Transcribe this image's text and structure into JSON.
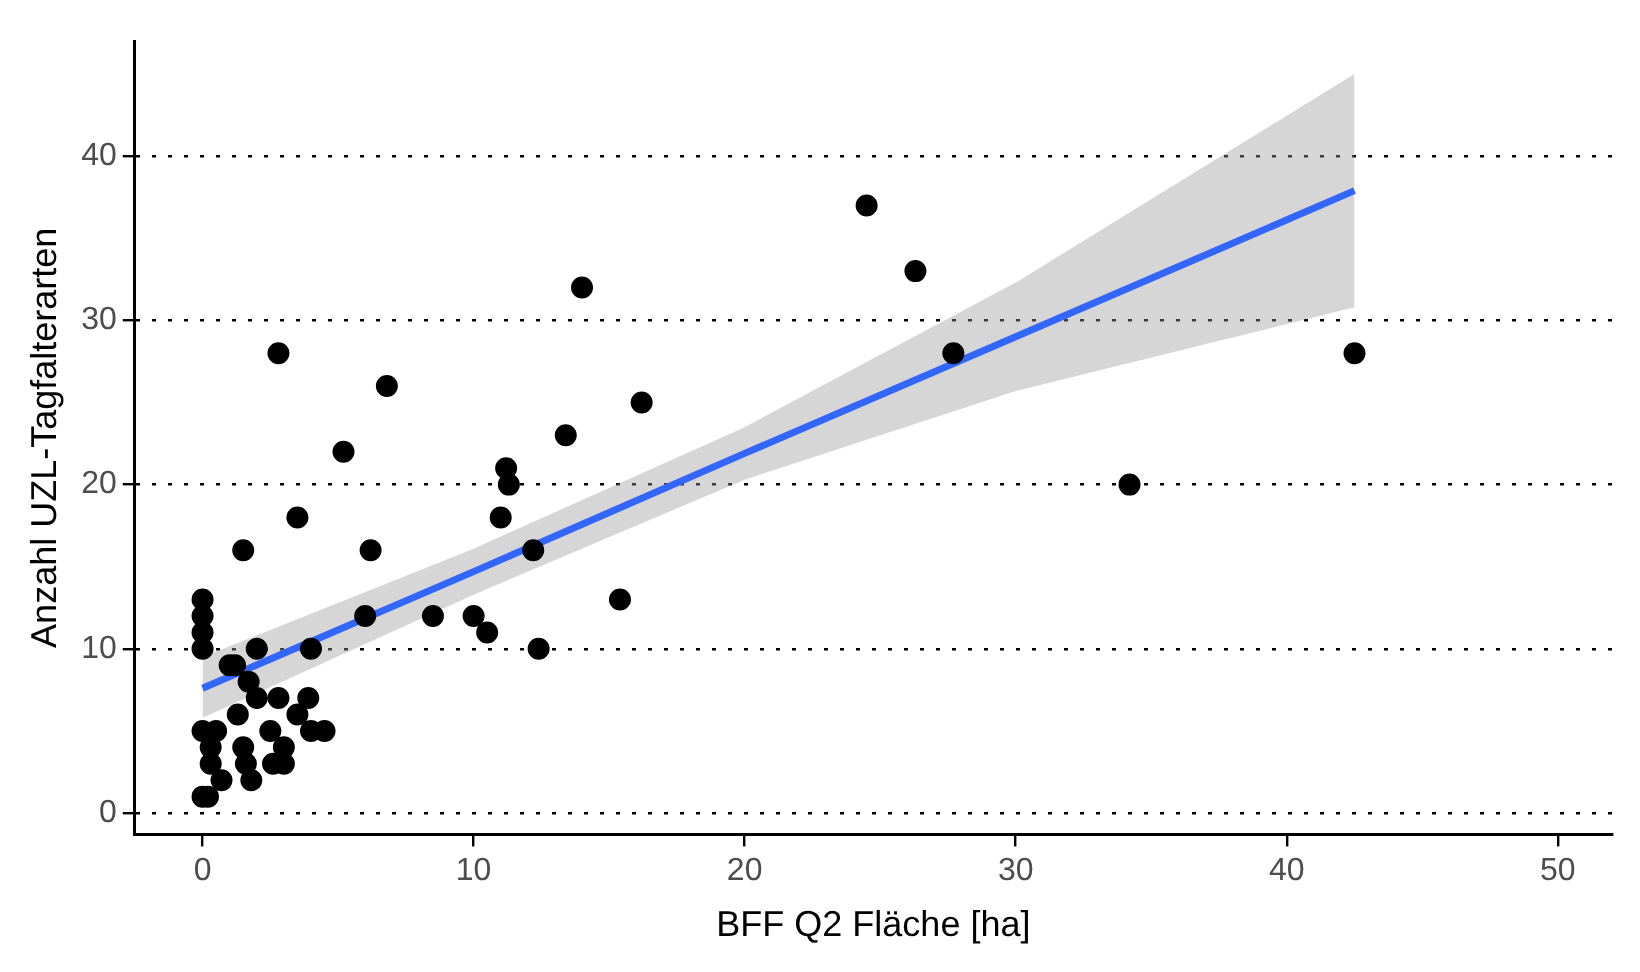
{
  "chart_data": {
    "type": "scatter",
    "xlabel": "BFF Q2 Fläche [ha]",
    "ylabel": "Anzahl UZL-Tagfalterarten",
    "xlim": [
      -2.5,
      52
    ],
    "ylim": [
      -1.3,
      47
    ],
    "xticks": [
      0,
      10,
      20,
      30,
      40,
      50
    ],
    "yticks": [
      0,
      10,
      20,
      30,
      40
    ],
    "grid": "y",
    "legend": false,
    "marker": "circle",
    "series": [
      {
        "type": "scatter",
        "color": "#000000",
        "x": [
          0,
          0,
          0,
          0,
          0,
          0,
          0.2,
          0.3,
          0.5,
          0.3,
          0.7,
          1,
          1.2,
          1.3,
          1.5,
          1.6,
          1.7,
          1.8,
          2,
          2,
          2.5,
          2.6,
          2.8,
          3,
          3,
          3.5,
          3.9,
          4,
          4,
          4.5,
          1.5,
          2.8,
          3.5,
          5.2,
          6,
          6.2,
          6.8,
          8.5,
          10,
          10.5,
          11,
          11.2,
          11.3,
          12.2,
          12.4,
          13.4,
          14,
          15.4,
          16.2,
          24.5,
          26.3,
          27.7,
          34.2,
          42.5
        ],
        "values": [
          13,
          12,
          11,
          10,
          5,
          1,
          1,
          4,
          5,
          3,
          2,
          9,
          9,
          6,
          4,
          3,
          8,
          2,
          7,
          10,
          5,
          3,
          7,
          4,
          3,
          6,
          7,
          5,
          10,
          5,
          16,
          28,
          18,
          22,
          12,
          16,
          26,
          12,
          12,
          11,
          18,
          21,
          20,
          16,
          10,
          23,
          32,
          13,
          25,
          37,
          33,
          28,
          20,
          28
        ]
      },
      {
        "type": "line",
        "color": "#3366ff",
        "line_style": "solid",
        "marker": "none",
        "x": [
          0,
          10,
          20,
          30,
          42.5
        ],
        "values": [
          7.6,
          14.7,
          21.9,
          29.0,
          37.9
        ],
        "lower": [
          5.8,
          13.3,
          20.3,
          25.7,
          30.8
        ],
        "upper": [
          9.5,
          16.1,
          23.5,
          32.3,
          45
        ]
      }
    ]
  }
}
